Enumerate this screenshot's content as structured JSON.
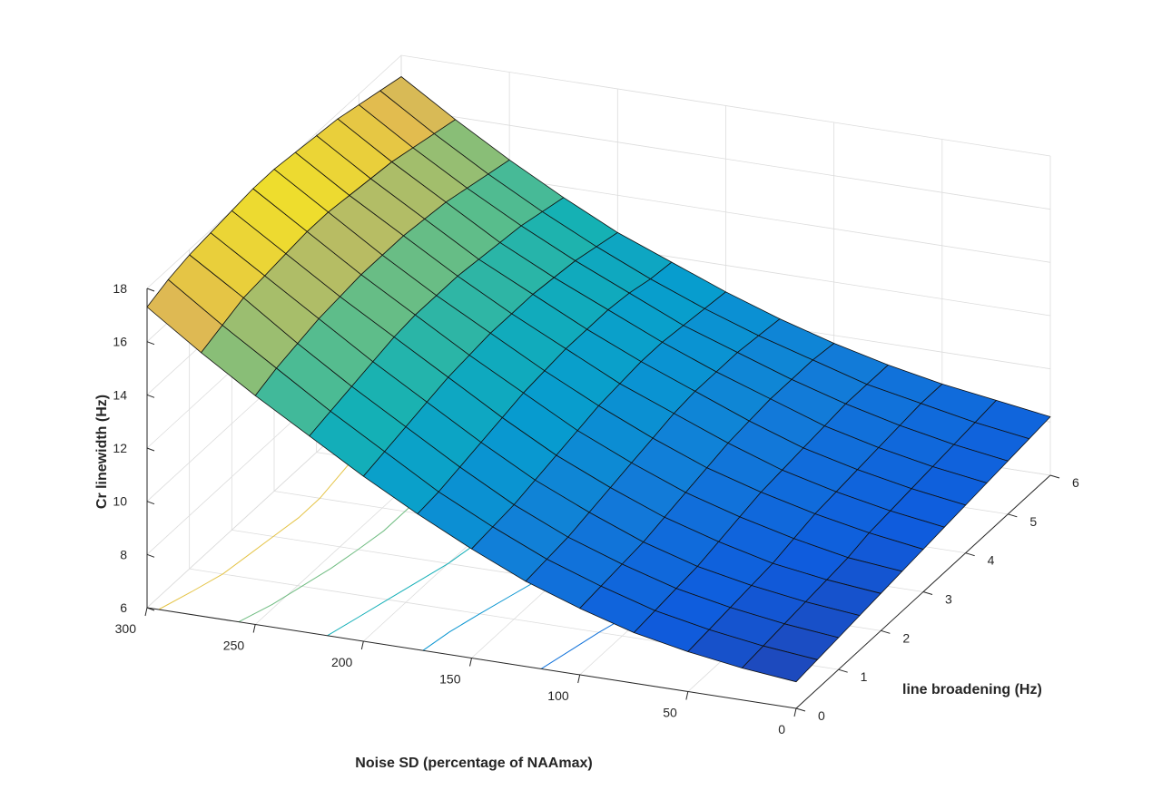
{
  "chart_data": {
    "type": "surface",
    "title": "",
    "xlabel": "Noise SD (percentage of NAAmax)",
    "ylabel": "line broadening (Hz)",
    "zlabel": "Cr linewidth (Hz)",
    "xlim": [
      0,
      300
    ],
    "ylim": [
      0,
      6
    ],
    "zlim": [
      6,
      18
    ],
    "x_ticks": [
      "0",
      "50",
      "100",
      "150",
      "200",
      "250",
      "300"
    ],
    "y_ticks": [
      "0",
      "1",
      "2",
      "3",
      "4",
      "5",
      "6"
    ],
    "z_ticks": [
      "6",
      "8",
      "10",
      "12",
      "14",
      "16",
      "18"
    ],
    "grid": true,
    "colormap": "parula",
    "notes": "Approximate surface read from a 3-D mesh plot with projected contour lines on the floor.",
    "x": [
      0,
      25,
      50,
      75,
      100,
      125,
      150,
      175,
      200,
      225,
      250,
      275,
      300
    ],
    "y": [
      0,
      0.5,
      1,
      1.5,
      2,
      2.5,
      3,
      3.5,
      4,
      4.5,
      5,
      5.5,
      6
    ],
    "z": [
      [
        7.0,
        7.2,
        7.5,
        7.9,
        8.5,
        9.2,
        10.1,
        11.1,
        12.2,
        13.4,
        14.6,
        15.9,
        17.3
      ],
      [
        7.1,
        7.3,
        7.6,
        8.0,
        8.6,
        9.3,
        10.2,
        11.2,
        12.4,
        13.6,
        14.9,
        16.2,
        17.6
      ],
      [
        7.2,
        7.4,
        7.7,
        8.1,
        8.7,
        9.4,
        10.3,
        11.4,
        12.6,
        13.8,
        15.1,
        16.5,
        17.8
      ],
      [
        7.3,
        7.5,
        7.8,
        8.2,
        8.8,
        9.6,
        10.5,
        11.6,
        12.8,
        14.0,
        15.3,
        16.6,
        17.9
      ],
      [
        7.4,
        7.6,
        7.9,
        8.4,
        9.0,
        9.8,
        10.7,
        11.8,
        13.0,
        14.2,
        15.4,
        16.7,
        18.0
      ],
      [
        7.5,
        7.7,
        8.1,
        8.6,
        9.2,
        10.0,
        10.9,
        12.0,
        13.1,
        14.3,
        15.5,
        16.8,
        18.1
      ],
      [
        7.6,
        7.9,
        8.3,
        8.8,
        9.4,
        10.2,
        11.1,
        12.1,
        13.2,
        14.3,
        15.5,
        16.8,
        18.1
      ],
      [
        7.7,
        8.0,
        8.4,
        8.9,
        9.6,
        10.4,
        11.2,
        12.2,
        13.2,
        14.3,
        15.5,
        16.7,
        18.0
      ],
      [
        7.8,
        8.1,
        8.5,
        9.0,
        9.7,
        10.5,
        11.3,
        12.2,
        13.2,
        14.2,
        15.4,
        16.6,
        17.9
      ],
      [
        7.9,
        8.2,
        8.6,
        9.1,
        9.8,
        10.5,
        11.3,
        12.2,
        13.1,
        14.1,
        15.3,
        16.5,
        17.8
      ],
      [
        8.0,
        8.3,
        8.7,
        9.2,
        9.8,
        10.5,
        11.2,
        12.1,
        13.0,
        14.0,
        15.1,
        16.3,
        17.6
      ],
      [
        8.1,
        8.4,
        8.8,
        9.2,
        9.8,
        10.4,
        11.1,
        11.9,
        12.8,
        13.8,
        14.9,
        16.1,
        17.4
      ],
      [
        8.2,
        8.5,
        8.8,
        9.2,
        9.7,
        10.3,
        11.0,
        11.8,
        12.6,
        13.6,
        14.7,
        15.9,
        17.2
      ]
    ]
  }
}
